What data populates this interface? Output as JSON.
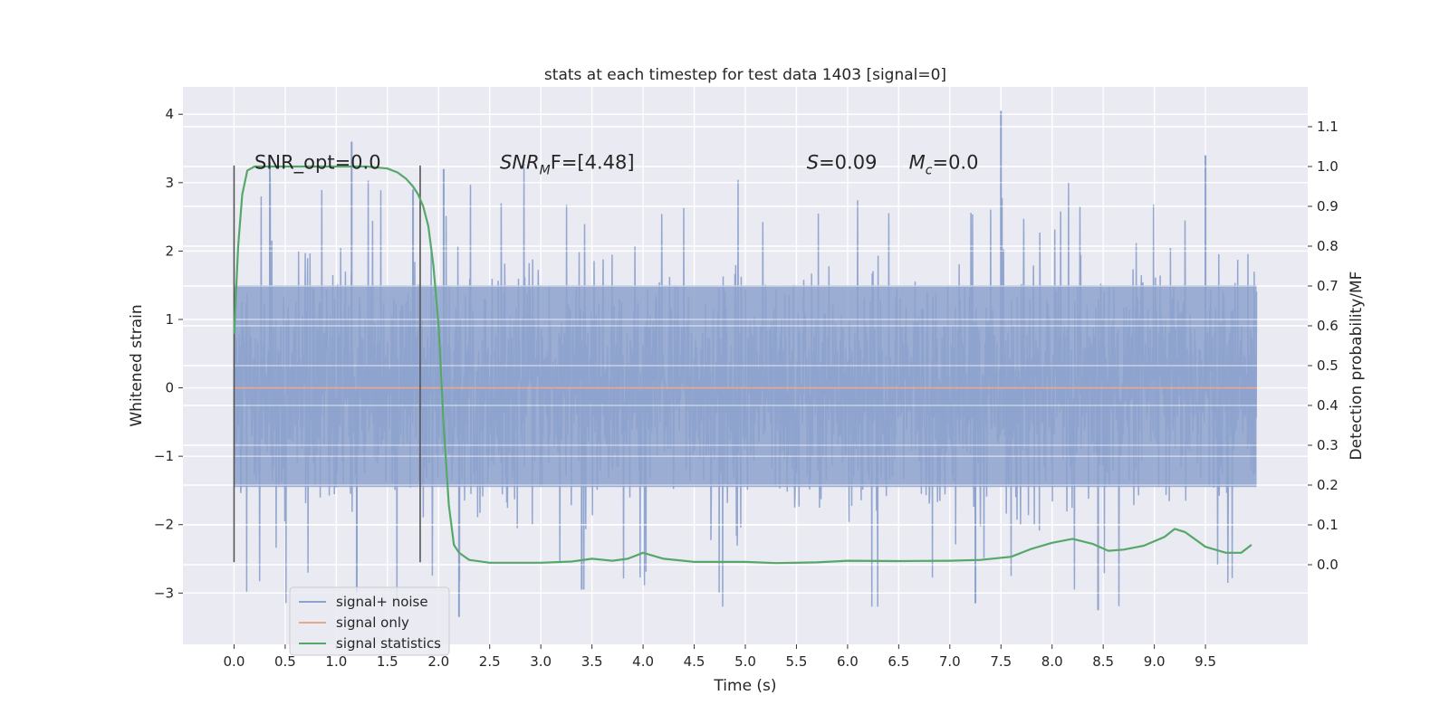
{
  "chart_data": {
    "type": "line",
    "title": "stats at each timestep for test data 1403 [signal=0]",
    "xlabel": "Time (s)",
    "ylabel": "Whitened strain",
    "y2label": "Detection probability/MF",
    "xlim": [
      -0.5,
      10.5
    ],
    "ylim": [
      -3.75,
      4.4
    ],
    "y2lim": [
      -0.2,
      1.2
    ],
    "x_ticks": [
      "0.0",
      "0.5",
      "1.0",
      "1.5",
      "2.0",
      "2.5",
      "3.0",
      "3.5",
      "4.0",
      "4.5",
      "5.0",
      "5.5",
      "6.0",
      "6.5",
      "7.0",
      "7.5",
      "8.0",
      "8.5",
      "9.0",
      "9.5"
    ],
    "y_ticks": [
      "−3",
      "−2",
      "−1",
      "0",
      "1",
      "2",
      "3",
      "4"
    ],
    "y2_ticks": [
      "0.0",
      "0.1",
      "0.2",
      "0.3",
      "0.4",
      "0.5",
      "0.6",
      "0.7",
      "0.8",
      "0.9",
      "1.0",
      "1.1"
    ],
    "grid": true,
    "legend_position": "lower-left",
    "vlines": [
      0.0,
      1.82
    ],
    "vline_range": [
      -2.55,
      3.25
    ],
    "annotations": [
      {
        "kind": "plain",
        "text": "SNR_opt=0.0",
        "x": 0.2,
        "y": 3.2
      },
      {
        "kind": "sub",
        "main": "SNR",
        "sub": "M",
        "rest": "F=[4.48]",
        "x": 2.6,
        "y": 3.2
      },
      {
        "kind": "italic",
        "main": "S",
        "rest": "=0.09",
        "x": 5.6,
        "y": 3.2
      },
      {
        "kind": "sub",
        "main": "M",
        "sub": "c",
        "rest": "=0.0",
        "x": 6.6,
        "y": 3.2
      }
    ],
    "series": [
      {
        "name": "signal+ noise",
        "color": "#8da2cc",
        "axis": "left",
        "x_range": [
          0.0,
          10.0
        ],
        "noise": {
          "core_low": -1.45,
          "core_high": 1.5,
          "peaks_high": [
            3.6,
            3.3,
            3.2,
            2.9,
            4.05,
            3.4
          ],
          "peaks_low": [
            -3.35,
            -3.25,
            -3.15,
            -3.0,
            -2.95
          ]
        }
      },
      {
        "name": "signal only",
        "color": "#e8a88e",
        "axis": "left",
        "x": [
          0.0,
          10.0
        ],
        "values": [
          0.0,
          0.0
        ]
      },
      {
        "name": "signal statistics",
        "color": "#55a868",
        "axis": "right",
        "x": [
          0.0,
          0.04,
          0.08,
          0.13,
          0.2,
          0.3,
          0.5,
          0.8,
          1.0,
          1.3,
          1.5,
          1.6,
          1.68,
          1.75,
          1.8,
          1.85,
          1.9,
          1.95,
          2.0,
          2.05,
          2.1,
          2.15,
          2.2,
          2.3,
          2.5,
          3.0,
          3.3,
          3.5,
          3.7,
          3.85,
          4.0,
          4.2,
          4.5,
          5.0,
          5.3,
          5.7,
          6.0,
          6.5,
          7.0,
          7.3,
          7.6,
          7.8,
          8.0,
          8.2,
          8.4,
          8.55,
          8.7,
          8.9,
          9.1,
          9.2,
          9.3,
          9.5,
          9.7,
          9.85,
          9.95
        ],
        "values": [
          0.58,
          0.8,
          0.93,
          0.99,
          1.0,
          1.0,
          1.0,
          1.0,
          1.0,
          1.0,
          0.995,
          0.985,
          0.97,
          0.95,
          0.93,
          0.9,
          0.85,
          0.75,
          0.6,
          0.35,
          0.15,
          0.05,
          0.03,
          0.012,
          0.005,
          0.005,
          0.008,
          0.015,
          0.01,
          0.015,
          0.03,
          0.015,
          0.007,
          0.007,
          0.004,
          0.006,
          0.01,
          0.009,
          0.01,
          0.012,
          0.02,
          0.04,
          0.055,
          0.065,
          0.052,
          0.035,
          0.038,
          0.048,
          0.07,
          0.09,
          0.082,
          0.045,
          0.03,
          0.03,
          0.05
        ]
      }
    ]
  }
}
